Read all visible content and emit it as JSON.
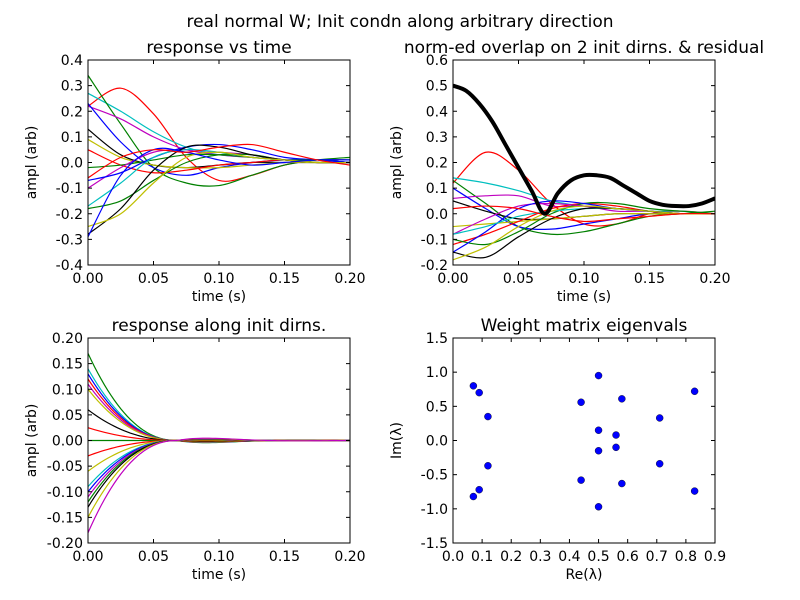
{
  "figure": {
    "suptitle": "real normal W; Init condn along arbitrary direction"
  },
  "chart_data": [
    {
      "type": "line",
      "title": "response vs time",
      "xlabel": "time (s)",
      "ylabel": "ampl (arb)",
      "xlim": [
        0.0,
        0.2
      ],
      "ylim": [
        -0.4,
        0.4
      ],
      "xticks": [
        "0.00",
        "0.05",
        "0.10",
        "0.15",
        "0.20"
      ],
      "yticks": [
        "-0.4",
        "-0.3",
        "-0.2",
        "-0.1",
        "0.0",
        "0.1",
        "0.2",
        "0.3",
        "0.4"
      ],
      "x": [
        0.0,
        0.025,
        0.05,
        0.075,
        0.1,
        0.125,
        0.15,
        0.175,
        0.2
      ],
      "series": [
        {
          "color": "#ff0000",
          "values": [
            0.22,
            0.29,
            0.19,
            0.02,
            -0.07,
            -0.05,
            -0.01,
            0.01,
            0.01
          ]
        },
        {
          "color": "#00bfbf",
          "values": [
            0.27,
            0.2,
            0.12,
            0.06,
            0.03,
            0.02,
            0.01,
            0.01,
            0.01
          ]
        },
        {
          "color": "#008000",
          "values": [
            0.34,
            0.15,
            -0.02,
            -0.08,
            -0.09,
            -0.05,
            -0.01,
            0.01,
            0.02
          ]
        },
        {
          "color": "#bf00bf",
          "values": [
            0.22,
            0.17,
            0.1,
            0.05,
            0.03,
            0.02,
            0.01,
            0.01,
            0.0
          ]
        },
        {
          "color": "#0000ff",
          "values": [
            0.23,
            0.08,
            -0.02,
            -0.05,
            -0.02,
            0.0,
            0.01,
            0.01,
            0.0
          ]
        },
        {
          "color": "#000000",
          "values": [
            0.13,
            0.03,
            -0.01,
            -0.02,
            -0.01,
            0.0,
            0.0,
            0.0,
            0.0
          ]
        },
        {
          "color": "#bfbf00",
          "values": [
            0.09,
            0.02,
            -0.01,
            -0.02,
            -0.02,
            -0.01,
            0.0,
            0.0,
            0.0
          ]
        },
        {
          "color": "#ff0000",
          "values": [
            0.05,
            -0.01,
            -0.04,
            -0.03,
            -0.01,
            0.0,
            0.01,
            0.0,
            0.0
          ]
        },
        {
          "color": "#008000",
          "values": [
            -0.02,
            -0.01,
            0.01,
            0.03,
            0.03,
            0.02,
            0.01,
            0.01,
            0.0
          ]
        },
        {
          "color": "#bf00bf",
          "values": [
            -0.1,
            -0.02,
            0.04,
            0.05,
            0.04,
            0.03,
            0.01,
            0.0,
            0.0
          ]
        },
        {
          "color": "#0000ff",
          "values": [
            -0.07,
            -0.04,
            0.02,
            0.06,
            0.07,
            0.05,
            0.02,
            0.01,
            0.0
          ]
        },
        {
          "color": "#00bfbf",
          "values": [
            -0.17,
            -0.08,
            0.02,
            0.05,
            0.04,
            0.02,
            0.01,
            0.0,
            0.0
          ]
        },
        {
          "color": "#008000",
          "values": [
            -0.18,
            -0.15,
            -0.07,
            0.0,
            0.03,
            0.03,
            0.01,
            0.01,
            0.01
          ]
        },
        {
          "color": "#000000",
          "values": [
            -0.28,
            -0.18,
            -0.03,
            0.06,
            0.06,
            0.03,
            0.01,
            0.0,
            0.0
          ]
        },
        {
          "color": "#bfbf00",
          "values": [
            -0.25,
            -0.2,
            -0.08,
            0.02,
            0.04,
            0.02,
            0.01,
            0.0,
            0.0
          ]
        },
        {
          "color": "#0000ff",
          "values": [
            -0.29,
            -0.05,
            0.05,
            0.04,
            0.01,
            -0.01,
            0.0,
            0.01,
            0.01
          ]
        },
        {
          "color": "#ff0000",
          "values": [
            -0.06,
            0.02,
            0.05,
            0.04,
            0.06,
            0.07,
            0.04,
            0.01,
            -0.01
          ]
        }
      ]
    },
    {
      "type": "line",
      "title": "norm-ed overlap on 2 init dirns. & residual",
      "xlabel": "time (s)",
      "ylabel": "ampl (arb)",
      "xlim": [
        0.0,
        0.2
      ],
      "ylim": [
        -0.2,
        0.6
      ],
      "xticks": [
        "0.00",
        "0.05",
        "0.10",
        "0.15",
        "0.20"
      ],
      "yticks": [
        "-0.2",
        "-0.1",
        "0.0",
        "0.1",
        "0.2",
        "0.3",
        "0.4",
        "0.5",
        "0.6"
      ],
      "x": [
        0.0,
        0.025,
        0.05,
        0.075,
        0.1,
        0.125,
        0.15,
        0.175,
        0.2
      ],
      "residual": {
        "color": "#000000",
        "x": [
          0.0,
          0.01,
          0.02,
          0.03,
          0.04,
          0.05,
          0.06,
          0.07,
          0.08,
          0.09,
          0.1,
          0.11,
          0.12,
          0.13,
          0.14,
          0.15,
          0.16,
          0.17,
          0.18,
          0.19,
          0.2
        ],
        "values": [
          0.5,
          0.48,
          0.43,
          0.36,
          0.27,
          0.18,
          0.09,
          0.0,
          0.08,
          0.13,
          0.15,
          0.15,
          0.14,
          0.11,
          0.08,
          0.05,
          0.035,
          0.03,
          0.03,
          0.04,
          0.06
        ]
      },
      "series": [
        {
          "color": "#ff0000",
          "values": [
            0.12,
            0.24,
            0.17,
            0.04,
            -0.04,
            -0.04,
            0.0,
            0.01,
            0.0
          ]
        },
        {
          "color": "#00bfbf",
          "values": [
            0.14,
            0.12,
            0.09,
            0.05,
            0.03,
            0.02,
            0.01,
            0.01,
            0.0
          ]
        },
        {
          "color": "#008000",
          "values": [
            0.13,
            0.04,
            -0.05,
            -0.08,
            -0.07,
            -0.04,
            -0.01,
            0.0,
            0.01
          ]
        },
        {
          "color": "#bf00bf",
          "values": [
            0.06,
            0.07,
            0.07,
            0.03,
            0.03,
            0.01,
            0.01,
            0.0,
            0.0
          ]
        },
        {
          "color": "#0000ff",
          "values": [
            0.1,
            0.02,
            -0.05,
            -0.06,
            -0.04,
            -0.02,
            0.0,
            0.0,
            0.0
          ]
        },
        {
          "color": "#000000",
          "values": [
            0.05,
            0.01,
            -0.02,
            -0.02,
            -0.01,
            0.0,
            0.0,
            0.0,
            0.0
          ]
        },
        {
          "color": "#bfbf00",
          "values": [
            -0.05,
            -0.04,
            -0.03,
            -0.02,
            -0.01,
            0.0,
            0.0,
            0.0,
            0.0
          ]
        },
        {
          "color": "#ff0000",
          "values": [
            -0.12,
            -0.08,
            -0.03,
            0.02,
            0.04,
            0.03,
            0.01,
            0.0,
            0.0
          ]
        },
        {
          "color": "#008000",
          "values": [
            -0.1,
            -0.12,
            -0.07,
            0.0,
            0.04,
            0.04,
            0.02,
            0.01,
            0.0
          ]
        },
        {
          "color": "#bf00bf",
          "values": [
            -0.08,
            -0.02,
            0.03,
            0.04,
            0.03,
            0.02,
            0.01,
            0.0,
            0.0
          ]
        },
        {
          "color": "#0000ff",
          "values": [
            -0.15,
            -0.07,
            0.02,
            0.05,
            0.04,
            0.02,
            0.01,
            0.0,
            0.0
          ]
        },
        {
          "color": "#00bfbf",
          "values": [
            -0.08,
            -0.05,
            -0.01,
            0.01,
            0.02,
            0.02,
            0.01,
            0.0,
            0.0
          ]
        },
        {
          "color": "#000000",
          "values": [
            -0.15,
            -0.17,
            -0.09,
            -0.02,
            0.02,
            0.02,
            0.01,
            0.0,
            0.0
          ]
        },
        {
          "color": "#bfbf00",
          "values": [
            -0.18,
            -0.13,
            -0.05,
            0.01,
            0.03,
            0.02,
            0.01,
            0.0,
            0.0
          ]
        },
        {
          "color": "#ff0000",
          "values": [
            0.02,
            0.03,
            0.02,
            -0.01,
            -0.03,
            -0.02,
            -0.01,
            0.0,
            0.0
          ]
        }
      ]
    },
    {
      "type": "line",
      "title": "response along init dirns.",
      "xlabel": "time (s)",
      "ylabel": "ampl (arb)",
      "xlim": [
        0.0,
        0.2
      ],
      "ylim": [
        -0.2,
        0.2
      ],
      "xticks": [
        "0.00",
        "0.05",
        "0.10",
        "0.15",
        "0.20"
      ],
      "yticks": [
        "-0.20",
        "-0.15",
        "-0.10",
        "-0.05",
        "0.00",
        "0.05",
        "0.10",
        "0.15",
        "0.20"
      ],
      "initial_values": [
        0.17,
        0.14,
        0.13,
        0.12,
        0.11,
        0.1,
        0.06,
        0.025,
        0.0,
        -0.03,
        -0.06,
        -0.09,
        -0.1,
        -0.11,
        -0.12,
        -0.13,
        -0.15,
        -0.18
      ],
      "colors": [
        "#008000",
        "#00bfbf",
        "#0000ff",
        "#ff0000",
        "#bf00bf",
        "#bfbf00",
        "#000000",
        "#ff0000",
        "#008000",
        "#ff0000",
        "#bfbf00",
        "#00bfbf",
        "#0000ff",
        "#bf00bf",
        "#008000",
        "#000000",
        "#bfbf00",
        "#bf00bf"
      ],
      "zero_crossing_time": 0.068
    },
    {
      "type": "scatter",
      "title": "Weight matrix eigenvals",
      "xlabel": "Re(λ)",
      "ylabel": "Im(λ)",
      "xlim": [
        0.0,
        0.9
      ],
      "ylim": [
        -1.5,
        1.5
      ],
      "xticks": [
        "0.0",
        "0.1",
        "0.2",
        "0.3",
        "0.4",
        "0.5",
        "0.6",
        "0.7",
        "0.8",
        "0.9"
      ],
      "yticks": [
        "-1.5",
        "-1.0",
        "-0.5",
        "0.0",
        "0.5",
        "1.0",
        "1.5"
      ],
      "color": "#0000ff",
      "points": [
        [
          0.07,
          0.8
        ],
        [
          0.07,
          -0.82
        ],
        [
          0.09,
          0.7
        ],
        [
          0.09,
          -0.72
        ],
        [
          0.12,
          0.35
        ],
        [
          0.12,
          -0.37
        ],
        [
          0.44,
          0.56
        ],
        [
          0.44,
          -0.58
        ],
        [
          0.5,
          0.95
        ],
        [
          0.5,
          -0.97
        ],
        [
          0.5,
          0.15
        ],
        [
          0.5,
          -0.15
        ],
        [
          0.56,
          0.08
        ],
        [
          0.56,
          -0.1
        ],
        [
          0.58,
          0.61
        ],
        [
          0.58,
          -0.63
        ],
        [
          0.71,
          0.33
        ],
        [
          0.71,
          -0.34
        ],
        [
          0.83,
          0.72
        ],
        [
          0.83,
          -0.74
        ]
      ]
    }
  ]
}
